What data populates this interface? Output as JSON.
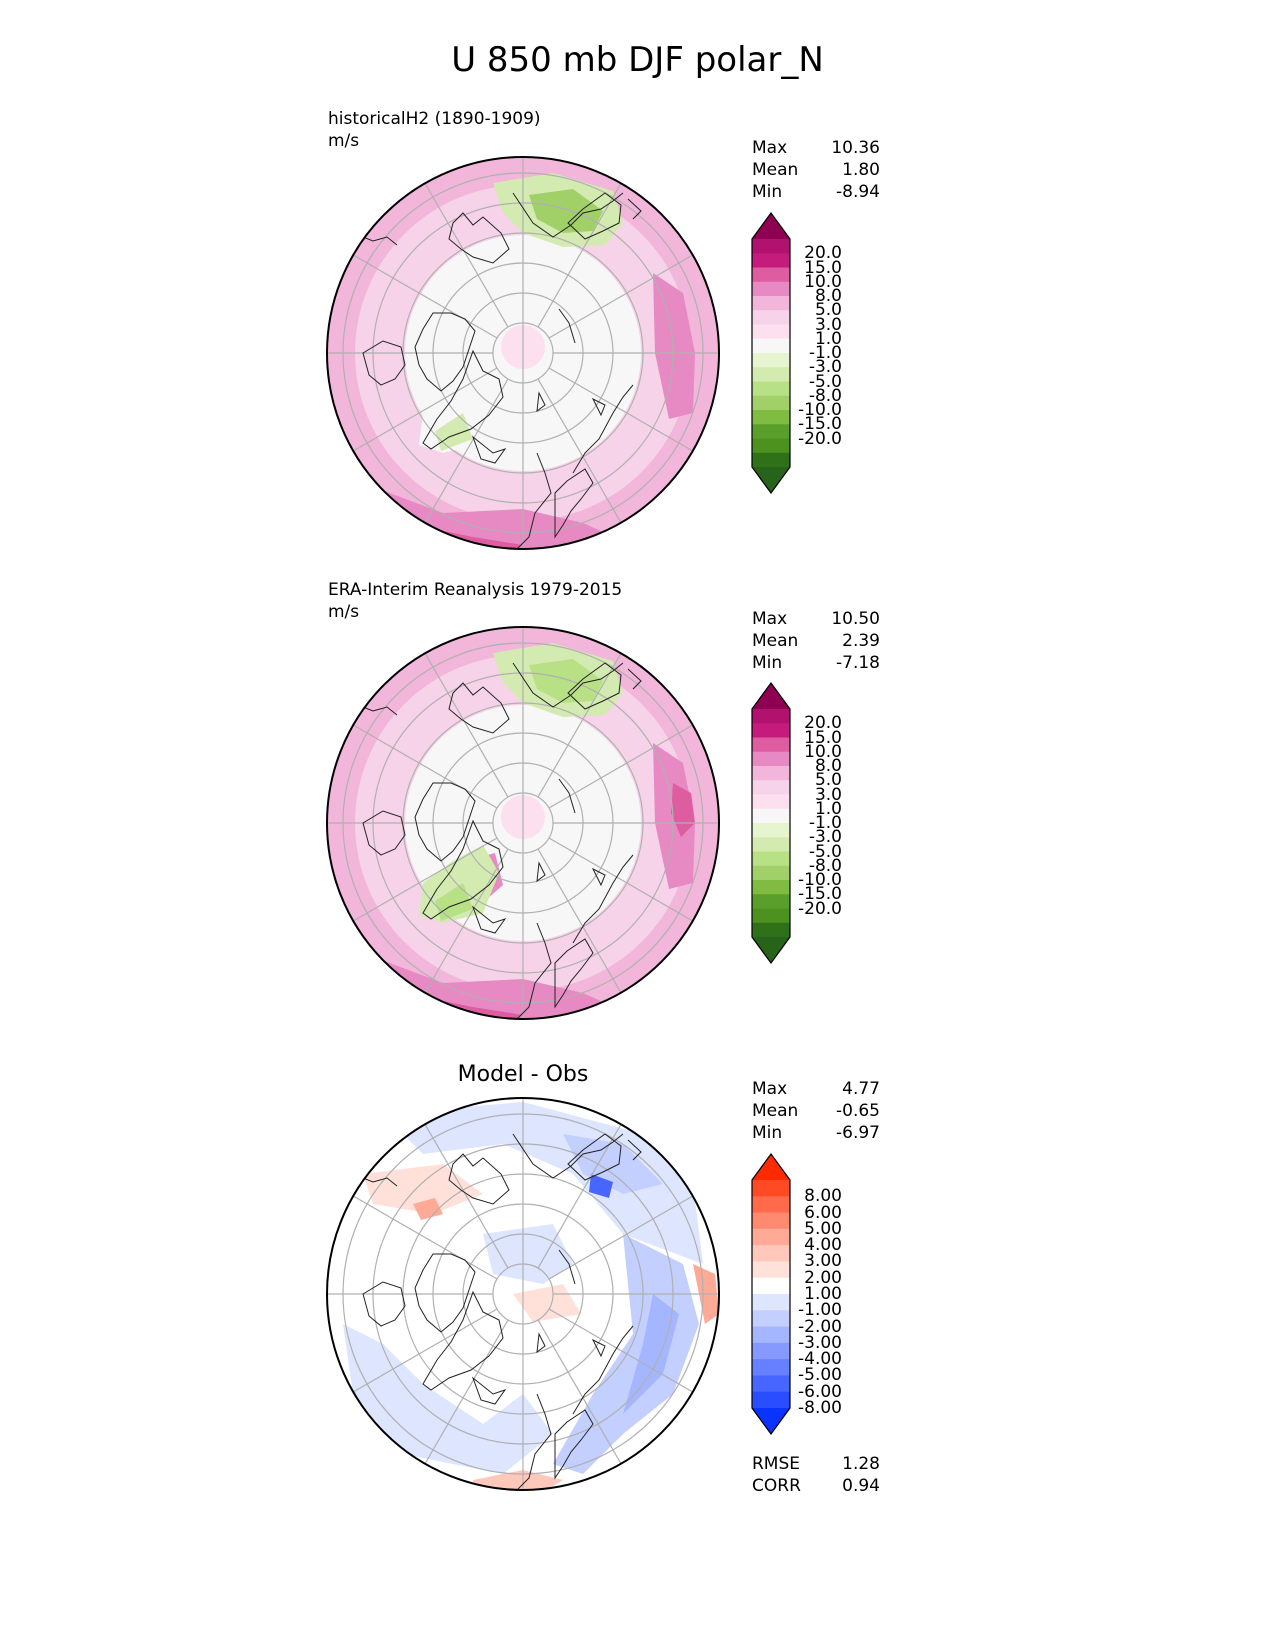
{
  "title": "U 850 mb DJF polar_N",
  "panels": [
    {
      "title_line1": "historicalH2 (1890-1909)",
      "title_line2": "m/s",
      "stats": [
        {
          "label": "Max",
          "value": "10.36"
        },
        {
          "label": "Mean",
          "value": "1.80"
        },
        {
          "label": "Min",
          "value": "-8.94"
        }
      ],
      "colorbar": {
        "ticks": [
          "20.0",
          "15.0",
          "10.0",
          "8.0",
          "5.0",
          "3.0",
          "1.0",
          "-1.0",
          "-3.0",
          "-5.0",
          "-8.0",
          "-10.0",
          "-15.0",
          "-20.0"
        ],
        "colors": [
          "#8e0152",
          "#b0126d",
          "#c51b7d",
          "#de5da1",
          "#e78ac3",
          "#f1b6da",
          "#f7d3e9",
          "#fde0ef",
          "#f7f7f7",
          "#e6f5d0",
          "#d3ebb1",
          "#b8e186",
          "#a0d067",
          "#7fbc41",
          "#5a9e2b",
          "#4d9221",
          "#2f7119",
          "#276419"
        ]
      }
    },
    {
      "title_line1": "ERA-Interim Reanalysis 1979-2015",
      "title_line2": "m/s",
      "stats": [
        {
          "label": "Max",
          "value": "10.50"
        },
        {
          "label": "Mean",
          "value": "2.39"
        },
        {
          "label": "Min",
          "value": "-7.18"
        }
      ],
      "colorbar": {
        "ticks": [
          "20.0",
          "15.0",
          "10.0",
          "8.0",
          "5.0",
          "3.0",
          "1.0",
          "-1.0",
          "-3.0",
          "-5.0",
          "-8.0",
          "-10.0",
          "-15.0",
          "-20.0"
        ],
        "colors": [
          "#8e0152",
          "#b0126d",
          "#c51b7d",
          "#de5da1",
          "#e78ac3",
          "#f1b6da",
          "#f7d3e9",
          "#fde0ef",
          "#f7f7f7",
          "#e6f5d0",
          "#d3ebb1",
          "#b8e186",
          "#a0d067",
          "#7fbc41",
          "#5a9e2b",
          "#4d9221",
          "#2f7119",
          "#276419"
        ]
      }
    },
    {
      "title": "Model - Obs",
      "stats": [
        {
          "label": "Max",
          "value": "4.77"
        },
        {
          "label": "Mean",
          "value": "-0.65"
        },
        {
          "label": "Min",
          "value": "-6.97"
        }
      ],
      "metrics": [
        {
          "label": "RMSE",
          "value": "1.28"
        },
        {
          "label": "CORR",
          "value": "0.94"
        }
      ],
      "colorbar": {
        "ticks": [
          "8.00",
          "6.00",
          "5.00",
          "4.00",
          "3.00",
          "2.00",
          "1.00",
          "-1.00",
          "-2.00",
          "-3.00",
          "-4.00",
          "-5.00",
          "-6.00",
          "-8.00"
        ],
        "colors": [
          "#ff2a00",
          "#ff4a24",
          "#ff6a4a",
          "#ff8a70",
          "#ffaa96",
          "#ffc8bb",
          "#ffe1da",
          "#ffffff",
          "#dde5ff",
          "#c2cfff",
          "#a4b6ff",
          "#8599ff",
          "#6680ff",
          "#4766ff",
          "#2a4dff",
          "#0a33ff"
        ]
      }
    }
  ],
  "chart_data": [
    {
      "type": "heatmap",
      "projection": "north polar stereographic",
      "variable": "U 850 mb",
      "season": "DJF",
      "units": "m/s",
      "max": 10.36,
      "mean": 1.8,
      "min": -8.94
    },
    {
      "type": "heatmap",
      "projection": "north polar stereographic",
      "variable": "U 850 mb",
      "season": "DJF",
      "units": "m/s",
      "max": 10.5,
      "mean": 2.39,
      "min": -7.18
    },
    {
      "type": "heatmap",
      "projection": "north polar stereographic",
      "variable": "U 850 mb difference",
      "units": "m/s",
      "max": 4.77,
      "mean": -0.65,
      "min": -6.97,
      "rmse": 1.28,
      "corr": 0.94
    }
  ]
}
